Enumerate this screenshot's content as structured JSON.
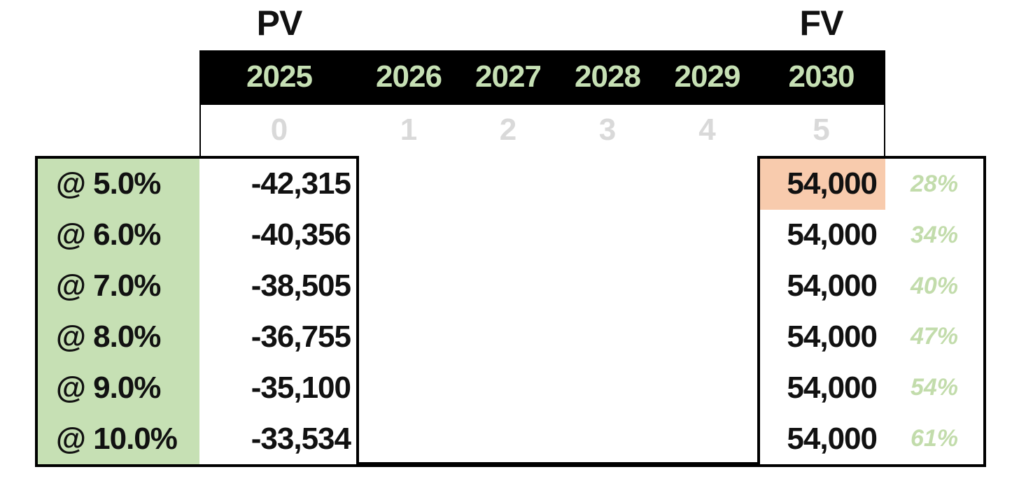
{
  "labels": {
    "pv": "PV",
    "fv": "FV"
  },
  "timeline": {
    "years": [
      "2025",
      "2026",
      "2027",
      "2028",
      "2029",
      "2030"
    ],
    "periods": [
      "0",
      "1",
      "2",
      "3",
      "4",
      "5"
    ]
  },
  "rates": {
    "rows": [
      {
        "label": "@ 5.0%",
        "value": "-42,315"
      },
      {
        "label": "@ 6.0%",
        "value": "-40,356"
      },
      {
        "label": "@ 7.0%",
        "value": "-38,505"
      },
      {
        "label": "@ 8.0%",
        "value": "-36,755"
      },
      {
        "label": "@ 9.0%",
        "value": "-35,100"
      },
      {
        "label": "@ 10.0%",
        "value": "-33,534"
      }
    ]
  },
  "fv": {
    "rows": [
      {
        "value": "54,000",
        "pct": "28%",
        "highlight": true
      },
      {
        "value": "54,000",
        "pct": "34%",
        "highlight": false
      },
      {
        "value": "54,000",
        "pct": "40%",
        "highlight": false
      },
      {
        "value": "54,000",
        "pct": "47%",
        "highlight": false
      },
      {
        "value": "54,000",
        "pct": "54%",
        "highlight": false
      },
      {
        "value": "54,000",
        "pct": "61%",
        "highlight": false
      }
    ]
  },
  "colors": {
    "green-fill": "#c6e0b4",
    "orange-highlight": "#f8cbad",
    "year-text": "#c6e0b4",
    "pct-text": "#c2dcab",
    "period-gray": "#d9d9d9",
    "bar-bg": "#000000",
    "line": "#000000"
  }
}
